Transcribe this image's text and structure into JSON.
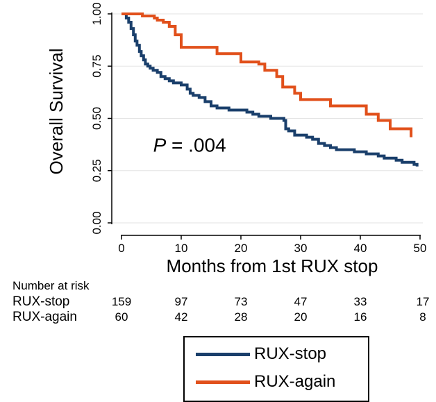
{
  "chart_data": {
    "type": "line",
    "step": true,
    "xlabel": "Months from 1st RUX stop",
    "ylabel": "Overall Survival",
    "xlim": [
      0,
      50
    ],
    "ylim": [
      0,
      1
    ],
    "xticks": [
      "0",
      "10",
      "20",
      "30",
      "40",
      "50"
    ],
    "yticks": [
      "0.00",
      "0.25",
      "0.50",
      "0.75",
      "1.00"
    ],
    "annotation": {
      "italic": "P",
      "rest": " = .004"
    },
    "grid": "horizontal",
    "legend_position": "bottom",
    "series": [
      {
        "name": "RUX-stop",
        "color": "#1a3f6b",
        "x": [
          0,
          0.8,
          1.2,
          1.6,
          2,
          2.3,
          2.6,
          3,
          3.3,
          3.7,
          4,
          4.4,
          4.8,
          5.3,
          6,
          6.6,
          7.3,
          8,
          8.7,
          9.3,
          10,
          11,
          11.5,
          12,
          13,
          14,
          15,
          16,
          17,
          18,
          19,
          20,
          21,
          22,
          23,
          24,
          25,
          26,
          27.2,
          27.5,
          28,
          29,
          30,
          31,
          32,
          33,
          34,
          35,
          36,
          37,
          38,
          39,
          40,
          41,
          42,
          43,
          44,
          45,
          46,
          47,
          48,
          49,
          49.5
        ],
        "y": [
          1.0,
          0.98,
          0.96,
          0.93,
          0.9,
          0.87,
          0.85,
          0.82,
          0.8,
          0.78,
          0.76,
          0.75,
          0.74,
          0.73,
          0.72,
          0.7,
          0.69,
          0.68,
          0.67,
          0.67,
          0.66,
          0.64,
          0.62,
          0.61,
          0.6,
          0.58,
          0.56,
          0.55,
          0.55,
          0.54,
          0.54,
          0.54,
          0.53,
          0.52,
          0.51,
          0.51,
          0.5,
          0.5,
          0.49,
          0.45,
          0.44,
          0.42,
          0.42,
          0.41,
          0.4,
          0.38,
          0.37,
          0.36,
          0.35,
          0.35,
          0.35,
          0.34,
          0.34,
          0.33,
          0.33,
          0.32,
          0.31,
          0.31,
          0.3,
          0.29,
          0.29,
          0.28,
          0.27
        ]
      },
      {
        "name": "RUX-again",
        "color": "#e1501b",
        "x": [
          0,
          1.5,
          3.5,
          5.5,
          6,
          7,
          8,
          9,
          10,
          12,
          14,
          16,
          17,
          20,
          23,
          24,
          26,
          27,
          29,
          30,
          33,
          35,
          37,
          39,
          41,
          43,
          45,
          48,
          48.5
        ],
        "y": [
          1.0,
          1.0,
          0.99,
          0.98,
          0.97,
          0.96,
          0.94,
          0.9,
          0.84,
          0.84,
          0.84,
          0.81,
          0.81,
          0.77,
          0.76,
          0.73,
          0.7,
          0.65,
          0.62,
          0.59,
          0.59,
          0.56,
          0.56,
          0.56,
          0.52,
          0.49,
          0.45,
          0.45,
          0.41
        ]
      }
    ],
    "risk_table": {
      "title": "Number at risk",
      "at_months": [
        0,
        10,
        20,
        30,
        40,
        50
      ],
      "rows": [
        {
          "label": "RUX-stop",
          "values": [
            "159",
            "97",
            "73",
            "47",
            "33",
            "17"
          ]
        },
        {
          "label": "RUX-again",
          "values": [
            "60",
            "42",
            "28",
            "20",
            "16",
            "8"
          ]
        }
      ]
    }
  }
}
